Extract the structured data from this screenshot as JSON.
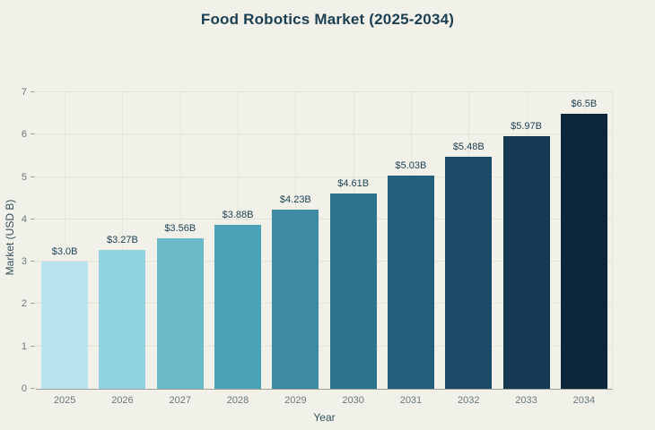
{
  "page": {
    "background": "#f1f1ea"
  },
  "colors": {
    "title_text": "#1b3f51",
    "value_label_text": "#1b3f51",
    "tick_text": "#68787e",
    "axis_title_text": "#33505c",
    "h_grid": "#e3e3da",
    "v_grid": "#e6e6de",
    "axis_line": "#9ba197"
  },
  "chart_data": {
    "type": "bar",
    "title": "Food Robotics Market (2025-2034)",
    "xlabel": "Year",
    "ylabel": "Market (USD B)",
    "categories": [
      "2025",
      "2026",
      "2027",
      "2028",
      "2029",
      "2030",
      "2031",
      "2032",
      "2033",
      "2034"
    ],
    "values": [
      3.0,
      3.27,
      3.56,
      3.88,
      4.23,
      4.61,
      5.03,
      5.48,
      5.97,
      6.5
    ],
    "value_labels": [
      "$3.0B",
      "$3.27B",
      "$3.56B",
      "$3.88B",
      "$4.23B",
      "$4.61B",
      "$5.03B",
      "$5.48B",
      "$5.97B",
      "$6.5B"
    ],
    "bar_colors": [
      "#b7e4ee",
      "#92d3e0",
      "#69b9c8",
      "#4aa2b6",
      "#3c8ba3",
      "#2d748f",
      "#235e7c",
      "#1b4a66",
      "#153953",
      "#0e263c"
    ],
    "ylim": [
      0,
      7
    ],
    "yticks": [
      0,
      1,
      2,
      3,
      4,
      5,
      6,
      7
    ],
    "grid": true,
    "legend": false
  }
}
